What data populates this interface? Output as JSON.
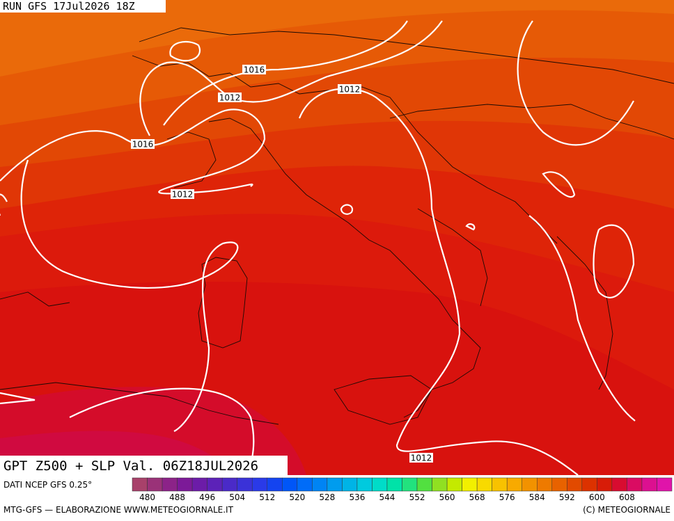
{
  "header": {
    "run": "RUN GFS 17Jul2026 18Z"
  },
  "panel": {
    "title": "GPT Z500 + SLP Val. 06Z18JUL2026",
    "source": "DATI NCEP GFS 0.25°"
  },
  "isobar_labels": [
    "1016",
    "1012",
    "1012",
    "1016",
    "1012",
    "1012"
  ],
  "colorbar": {
    "labels": [
      "480",
      "488",
      "496",
      "504",
      "512",
      "520",
      "528",
      "536",
      "544",
      "552",
      "560",
      "568",
      "576",
      "584",
      "592",
      "600",
      "608"
    ],
    "colors": [
      "#a8416a",
      "#9a3278",
      "#8c2388",
      "#7c1a98",
      "#6c1ca8",
      "#5c22b8",
      "#4a2ac8",
      "#3a32d8",
      "#2a3ae8",
      "#1444f0",
      "#0056f8",
      "#006cf8",
      "#0084f4",
      "#009cee",
      "#00b4e6",
      "#00cade",
      "#00dcc8",
      "#00e2a8",
      "#22e27e",
      "#52e040",
      "#90e022",
      "#c4ea00",
      "#f2f000",
      "#f8da00",
      "#f8c200",
      "#f8aa00",
      "#f29200",
      "#ee7a00",
      "#e86200",
      "#e24a00",
      "#dc3200",
      "#d81c08",
      "#d80c30",
      "#da0c62",
      "#dc1090",
      "#e014aa"
    ]
  },
  "footer": {
    "left": "MTG-GFS — ELABORAZIONE WWW.METEOGIORNALE.IT",
    "right": "(C) METEOGIORNALE"
  }
}
